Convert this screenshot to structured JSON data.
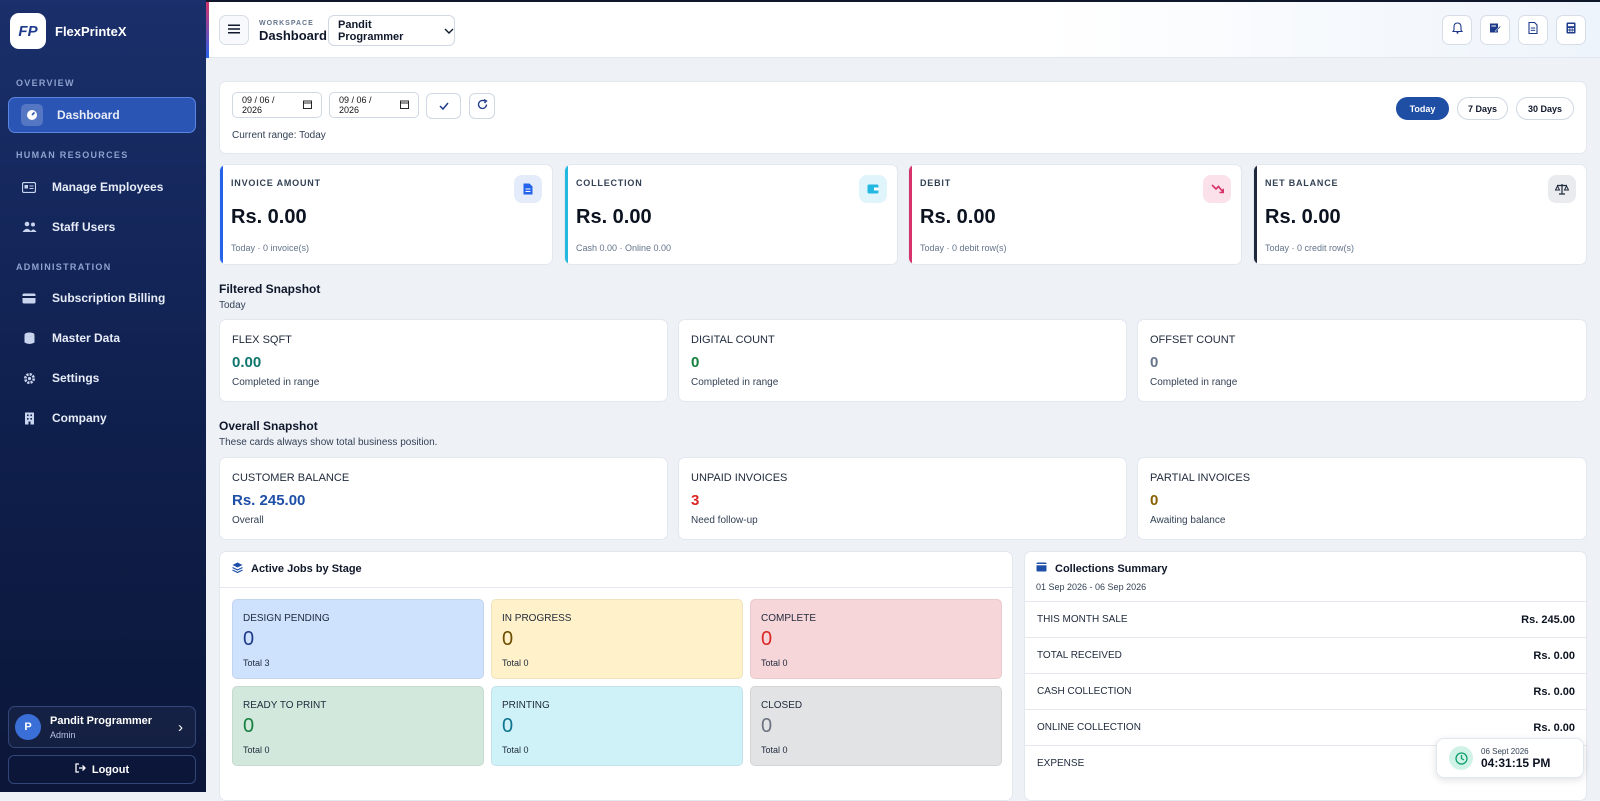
{
  "app": {
    "name": "FlexPrinteX",
    "logo_text": "FP"
  },
  "sidebar": {
    "sections": [
      {
        "label": "OVERVIEW"
      },
      {
        "label": "HUMAN RESOURCES"
      },
      {
        "label": "ADMINISTRATION"
      }
    ],
    "items": [
      {
        "label": "Dashboard",
        "icon": "gauge-icon",
        "active": true
      },
      {
        "label": "Manage Employees",
        "icon": "id-card-icon"
      },
      {
        "label": "Staff Users",
        "icon": "users-icon"
      },
      {
        "label": "Subscription Billing",
        "icon": "credit-card-icon"
      },
      {
        "label": "Master Data",
        "icon": "database-icon"
      },
      {
        "label": "Settings",
        "icon": "gear-icon"
      },
      {
        "label": "Company",
        "icon": "building-icon"
      }
    ],
    "user": {
      "initial": "P",
      "name": "Pandit Programmer",
      "role": "Admin"
    },
    "logout_label": "Logout"
  },
  "header": {
    "workspace_label": "WORKSPACE",
    "title": "Dashboard",
    "workspace_select": "Pandit Programmer",
    "icons": [
      "bell-icon",
      "edit-note-icon",
      "document-icon",
      "calculator-icon"
    ]
  },
  "filter": {
    "from_date": "09 / 06 / 2026",
    "to_date": "09 / 06 / 2026",
    "current_range": "Current range: Today",
    "presets": [
      {
        "label": "Today",
        "active": true
      },
      {
        "label": "7 Days",
        "active": false
      },
      {
        "label": "30 Days",
        "active": false
      }
    ]
  },
  "kpis": [
    {
      "label": "INVOICE AMOUNT",
      "value": "Rs. 0.00",
      "sub": "Today · 0 invoice(s)",
      "color": "#2563eb",
      "icon": "invoice-icon"
    },
    {
      "label": "COLLECTION",
      "value": "Rs. 0.00",
      "sub": "Cash 0.00 · Online 0.00",
      "color": "#22b8e0",
      "icon": "wallet-icon"
    },
    {
      "label": "DEBIT",
      "value": "Rs. 0.00",
      "sub": "Today · 0 debit row(s)",
      "color": "#d6336c",
      "icon": "trend-down-icon"
    },
    {
      "label": "NET BALANCE",
      "value": "Rs. 0.00",
      "sub": "Today · 0 credit row(s)",
      "color": "#1e293b",
      "icon": "scale-icon"
    }
  ],
  "filtered_snapshot": {
    "title": "Filtered Snapshot",
    "subtitle": "Today",
    "cards": [
      {
        "label": "FLEX SQFT",
        "value": "0.00",
        "sub": "Completed in range",
        "color": "#0f766e"
      },
      {
        "label": "DIGITAL COUNT",
        "value": "0",
        "sub": "Completed in range",
        "color": "#15803d"
      },
      {
        "label": "OFFSET COUNT",
        "value": "0",
        "sub": "Completed in range",
        "color": "#64748b"
      }
    ]
  },
  "overall_snapshot": {
    "title": "Overall Snapshot",
    "subtitle": "These cards always show total business position.",
    "cards": [
      {
        "label": "CUSTOMER BALANCE",
        "value": "Rs. 245.00",
        "sub": "Overall",
        "color": "#1e4fa8"
      },
      {
        "label": "UNPAID INVOICES",
        "value": "3",
        "sub": "Need follow-up",
        "color": "#dc2626"
      },
      {
        "label": "PARTIAL INVOICES",
        "value": "0",
        "sub": "Awaiting balance",
        "color": "#8a6100"
      }
    ]
  },
  "jobs": {
    "title": "Active Jobs by Stage",
    "stages": [
      {
        "label": "DESIGN PENDING",
        "value": "0",
        "sub": "Total 3",
        "bg": "#cfe2fd",
        "color": "#1e3a8a"
      },
      {
        "label": "IN PROGRESS",
        "value": "0",
        "sub": "Total 0",
        "bg": "#fff1c9",
        "color": "#6b4e00"
      },
      {
        "label": "COMPLETE",
        "value": "0",
        "sub": "Total 0",
        "bg": "#f7d6d9",
        "color": "#dc2626"
      },
      {
        "label": "READY TO PRINT",
        "value": "0",
        "sub": "Total 0",
        "bg": "#d3e8dd",
        "color": "#15803d"
      },
      {
        "label": "PRINTING",
        "value": "0",
        "sub": "Total 0",
        "bg": "#cff2f8",
        "color": "#0e7490"
      },
      {
        "label": "CLOSED",
        "value": "0",
        "sub": "Total 0",
        "bg": "#e2e3e5",
        "color": "#6b7280"
      }
    ]
  },
  "collections": {
    "title": "Collections Summary",
    "range": "01 Sep 2026 - 06 Sep 2026",
    "rows": [
      {
        "label": "THIS MONTH SALE",
        "value": "Rs. 245.00"
      },
      {
        "label": "TOTAL RECEIVED",
        "value": "Rs. 0.00"
      },
      {
        "label": "CASH COLLECTION",
        "value": "Rs. 0.00"
      },
      {
        "label": "ONLINE COLLECTION",
        "value": "Rs. 0.00"
      },
      {
        "label": "EXPENSE",
        "value": ""
      }
    ]
  },
  "clock": {
    "date": "06 Sept 2026",
    "time": "04:31:15 PM"
  }
}
